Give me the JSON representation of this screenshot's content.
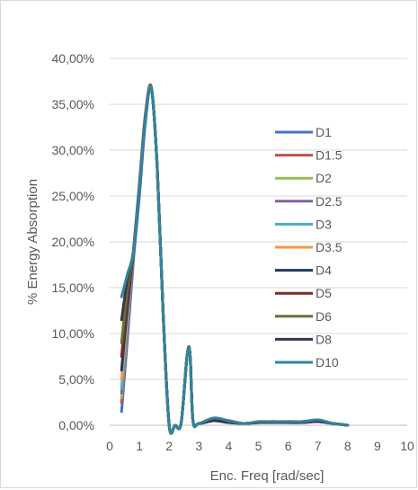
{
  "chart_data": {
    "type": "line",
    "title": "",
    "xlabel": "Enc. Freq [rad/sec]",
    "ylabel": "% Energy Absorption",
    "xlim": [
      0,
      10
    ],
    "ylim": [
      0,
      40
    ],
    "x_ticks": [
      "0",
      "1",
      "2",
      "3",
      "4",
      "5",
      "6",
      "7",
      "8",
      "9",
      "10"
    ],
    "y_ticks": [
      "0,00%",
      "5,00%",
      "10,00%",
      "15,00%",
      "20,00%",
      "25,00%",
      "30,00%",
      "35,00%",
      "40,00%"
    ],
    "grid": "horizontal",
    "legend_position": "right",
    "x": [
      0.4,
      0.6,
      0.8,
      1.0,
      1.2,
      1.4,
      1.6,
      1.8,
      2.0,
      2.2,
      2.4,
      2.6,
      2.7,
      2.8,
      3.0,
      3.5,
      4.0,
      4.5,
      5.0,
      5.5,
      6.0,
      6.5,
      7.0,
      7.5,
      8.0
    ],
    "series": [
      {
        "name": "D1",
        "color": "#4472c4",
        "values": [
          1.5,
          9.5,
          18.0,
          25.0,
          33.0,
          36.8,
          28.0,
          12.0,
          0.0,
          0.0,
          0.2,
          7.5,
          7.8,
          0.5,
          0.2,
          0.5,
          0.3,
          0.2,
          0.3,
          0.3,
          0.3,
          0.3,
          0.4,
          0.2,
          0.0
        ]
      },
      {
        "name": "D1.5",
        "color": "#c0504d",
        "values": [
          2.5,
          10.5,
          19.0,
          26.5,
          34.0,
          36.9,
          28.0,
          12.0,
          0.0,
          0.0,
          0.2,
          7.5,
          7.8,
          0.5,
          0.2,
          0.6,
          0.4,
          0.2,
          0.3,
          0.4,
          0.3,
          0.4,
          0.5,
          0.2,
          0.0
        ]
      },
      {
        "name": "D2",
        "color": "#9bbb59",
        "values": [
          3.0,
          11.0,
          19.0,
          26.0,
          33.5,
          36.8,
          28.0,
          12.0,
          0.0,
          0.0,
          0.2,
          7.5,
          7.8,
          0.5,
          0.2,
          0.5,
          0.3,
          0.2,
          0.3,
          0.3,
          0.4,
          0.3,
          0.4,
          0.2,
          0.0
        ]
      },
      {
        "name": "D2.5",
        "color": "#8064a2",
        "values": [
          3.5,
          11.5,
          19.0,
          26.0,
          33.5,
          36.8,
          28.0,
          12.0,
          0.0,
          0.0,
          0.2,
          7.5,
          7.8,
          0.5,
          0.2,
          0.5,
          0.4,
          0.2,
          0.3,
          0.3,
          0.3,
          0.4,
          0.5,
          0.2,
          0.0
        ]
      },
      {
        "name": "D3",
        "color": "#4bacc6",
        "values": [
          4.0,
          12.0,
          19.0,
          26.0,
          33.5,
          36.8,
          28.0,
          12.0,
          0.0,
          0.0,
          0.2,
          7.5,
          7.8,
          0.5,
          0.2,
          0.6,
          0.3,
          0.2,
          0.3,
          0.4,
          0.3,
          0.3,
          0.4,
          0.2,
          0.0
        ]
      },
      {
        "name": "D3.5",
        "color": "#f79646",
        "values": [
          5.0,
          12.5,
          19.0,
          26.0,
          33.5,
          36.8,
          28.0,
          12.0,
          0.0,
          0.0,
          0.2,
          7.5,
          7.8,
          0.5,
          0.2,
          0.5,
          0.4,
          0.2,
          0.3,
          0.3,
          0.4,
          0.3,
          0.5,
          0.2,
          0.0
        ]
      },
      {
        "name": "D4",
        "color": "#1f3864",
        "values": [
          6.0,
          13.0,
          19.0,
          26.0,
          33.5,
          36.8,
          28.0,
          12.0,
          0.0,
          0.0,
          0.2,
          7.5,
          7.8,
          0.5,
          0.2,
          0.5,
          0.3,
          0.2,
          0.3,
          0.3,
          0.3,
          0.4,
          0.4,
          0.2,
          0.0
        ]
      },
      {
        "name": "D5",
        "color": "#7f2b29",
        "values": [
          7.5,
          14.0,
          19.0,
          26.0,
          33.5,
          36.8,
          28.0,
          12.0,
          0.0,
          0.0,
          0.2,
          7.5,
          7.8,
          0.5,
          0.2,
          0.6,
          0.5,
          0.2,
          0.3,
          0.4,
          0.3,
          0.3,
          0.5,
          0.2,
          0.0
        ]
      },
      {
        "name": "D6",
        "color": "#5f7530",
        "values": [
          9.0,
          15.0,
          19.0,
          26.0,
          33.5,
          36.8,
          28.0,
          12.0,
          0.0,
          0.0,
          0.2,
          7.5,
          7.8,
          0.5,
          0.2,
          0.5,
          0.4,
          0.2,
          0.3,
          0.3,
          0.4,
          0.4,
          0.5,
          0.2,
          0.0
        ]
      },
      {
        "name": "D8",
        "color": "#3f3151",
        "values": [
          11.5,
          16.0,
          19.0,
          26.0,
          33.5,
          36.8,
          28.0,
          12.0,
          0.0,
          0.0,
          0.2,
          7.5,
          7.8,
          0.5,
          0.2,
          0.5,
          0.3,
          0.2,
          0.3,
          0.3,
          0.3,
          0.3,
          0.4,
          0.2,
          0.0
        ]
      },
      {
        "name": "D10",
        "color": "#31859c",
        "values": [
          14.0,
          16.5,
          19.0,
          26.0,
          33.5,
          36.8,
          28.0,
          12.0,
          0.0,
          0.0,
          0.2,
          7.5,
          7.8,
          0.5,
          0.2,
          0.8,
          0.5,
          0.2,
          0.4,
          0.4,
          0.4,
          0.4,
          0.6,
          0.2,
          0.0
        ]
      }
    ]
  }
}
